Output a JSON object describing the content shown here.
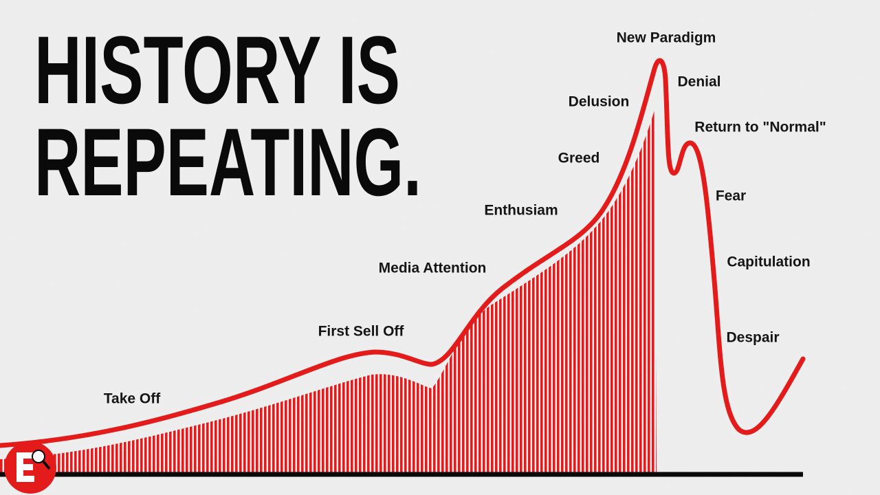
{
  "title": {
    "line1": "HISTORY IS",
    "line2": "REPEATING."
  },
  "phases": [
    "Take Off",
    "First Sell Off",
    "Media Attention",
    "Enthusiam",
    "Greed",
    "Delusion",
    "New Paradigm",
    "Denial",
    "Return to \"Normal\"",
    "Fear",
    "Capitulation",
    "Despair"
  ]
}
